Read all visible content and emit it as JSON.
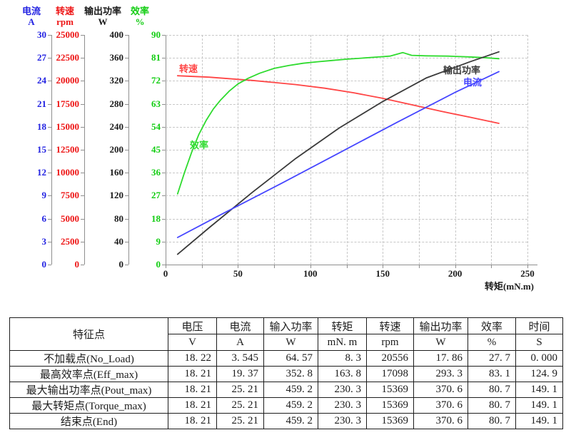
{
  "chart_data": {
    "type": "line",
    "title": "",
    "xlabel": "转矩(mN.m)",
    "x_range": [
      0,
      250
    ],
    "x_tick_labels": [
      0,
      50,
      100,
      150,
      200,
      250
    ],
    "x_minor_step": 25,
    "grid": "dashed",
    "legend_position": "inline-curve-labels",
    "axes": [
      {
        "id": "current",
        "title": "电流",
        "unit": "A",
        "color": "#2323e2",
        "max": 30,
        "ticks": [
          0,
          3,
          6,
          9,
          12,
          15,
          18,
          21,
          24,
          27,
          30
        ]
      },
      {
        "id": "speed",
        "title": "转速",
        "unit": "rpm",
        "color": "#ee1515",
        "max": 25000,
        "ticks": [
          0,
          2500,
          5000,
          7500,
          10000,
          12500,
          15000,
          17500,
          20000,
          22500,
          25000
        ]
      },
      {
        "id": "power",
        "title": "输出功率",
        "unit": "W",
        "color": "#1a1a1a",
        "max": 400,
        "ticks": [
          0,
          40,
          80,
          120,
          160,
          200,
          240,
          280,
          320,
          360,
          400
        ]
      },
      {
        "id": "efficiency",
        "title": "效率",
        "unit": "%",
        "color": "#12cd12",
        "max": 90,
        "ticks": [
          0,
          9,
          18,
          27,
          36,
          45,
          54,
          63,
          72,
          81,
          90
        ]
      }
    ],
    "series": [
      {
        "id": "speed",
        "name": "转速",
        "axis": "speed",
        "color": "#ff4545",
        "points": [
          [
            8.3,
            20556
          ],
          [
            30,
            20400
          ],
          [
            60,
            20050
          ],
          [
            90,
            19600
          ],
          [
            110,
            19200
          ],
          [
            130,
            18700
          ],
          [
            150,
            18100
          ],
          [
            170,
            17400
          ],
          [
            190,
            16700
          ],
          [
            210,
            16050
          ],
          [
            230.3,
            15369
          ]
        ]
      },
      {
        "id": "efficiency",
        "name": "效率",
        "axis": "efficiency",
        "color": "#2edb2e",
        "points": [
          [
            8.3,
            27.7
          ],
          [
            13,
            36
          ],
          [
            18,
            44
          ],
          [
            23,
            51
          ],
          [
            28,
            56.5
          ],
          [
            33,
            61
          ],
          [
            38,
            64.5
          ],
          [
            44,
            68
          ],
          [
            50,
            70.8
          ],
          [
            57,
            73
          ],
          [
            65,
            75
          ],
          [
            75,
            76.9
          ],
          [
            85,
            78
          ],
          [
            95,
            78.9
          ],
          [
            105,
            79.5
          ],
          [
            115,
            80
          ],
          [
            125,
            80.5
          ],
          [
            135,
            80.9
          ],
          [
            145,
            81.3
          ],
          [
            155,
            81.7
          ],
          [
            163.8,
            83.1
          ],
          [
            170,
            82
          ],
          [
            180,
            81.8
          ],
          [
            195,
            81.7
          ],
          [
            210,
            81.4
          ],
          [
            220,
            81.1
          ],
          [
            230.3,
            80.7
          ]
        ]
      },
      {
        "id": "power",
        "name": "输出功率",
        "axis": "power",
        "color": "#3a3a3a",
        "points": [
          [
            8.3,
            17.86
          ],
          [
            30,
            64
          ],
          [
            60,
            126
          ],
          [
            90,
            185
          ],
          [
            120,
            238
          ],
          [
            150,
            284
          ],
          [
            180,
            325
          ],
          [
            210,
            353
          ],
          [
            230.3,
            370.6
          ]
        ]
      },
      {
        "id": "current",
        "name": "电流",
        "axis": "current",
        "color": "#4646ff",
        "points": [
          [
            8.3,
            3.545
          ],
          [
            40,
            6.7
          ],
          [
            80,
            10.6
          ],
          [
            120,
            14.6
          ],
          [
            160,
            18.6
          ],
          [
            200,
            22.5
          ],
          [
            230.3,
            25.21
          ]
        ]
      }
    ]
  },
  "table": {
    "corner_header": "特征点",
    "columns": [
      {
        "name": "电压",
        "unit": "V"
      },
      {
        "name": "电流",
        "unit": "A"
      },
      {
        "name": "输入功率",
        "unit": "W"
      },
      {
        "name": "转矩",
        "unit": "mN. m"
      },
      {
        "name": "转速",
        "unit": "rpm"
      },
      {
        "name": "输出功率",
        "unit": "W"
      },
      {
        "name": "效率",
        "unit": "%"
      },
      {
        "name": "时间",
        "unit": "S"
      }
    ],
    "rows": [
      {
        "label": "不加载点(No_Load)",
        "values": [
          "18. 22",
          "3. 545",
          "64. 57",
          "8. 3",
          "20556",
          "17. 86",
          "27. 7",
          "0. 000"
        ]
      },
      {
        "label": "最高效率点(Eff_max)",
        "values": [
          "18. 21",
          "19. 37",
          "352. 8",
          "163. 8",
          "17098",
          "293. 3",
          "83. 1",
          "124. 9"
        ]
      },
      {
        "label": "最大输出功率点(Pout_max)",
        "values": [
          "18. 21",
          "25. 21",
          "459. 2",
          "230. 3",
          "15369",
          "370. 6",
          "80. 7",
          "149. 1"
        ]
      },
      {
        "label": "最大转矩点(Torque_max)",
        "values": [
          "18. 21",
          "25. 21",
          "459. 2",
          "230. 3",
          "15369",
          "370. 6",
          "80. 7",
          "149. 1"
        ]
      },
      {
        "label": "结束点(End)",
        "values": [
          "18. 21",
          "25. 21",
          "459. 2",
          "230. 3",
          "15369",
          "370. 6",
          "80. 7",
          "149. 1"
        ]
      }
    ]
  }
}
